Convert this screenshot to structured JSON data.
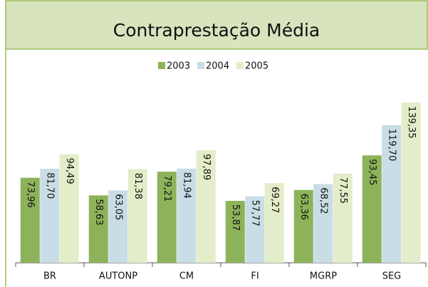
{
  "chart_data": {
    "type": "bar",
    "title": "Contraprestação Média",
    "categories": [
      "BR",
      "AUTONP",
      "CM",
      "FI",
      "MGRP",
      "SEG"
    ],
    "series": [
      {
        "name": "2003",
        "color": "#8db35a",
        "values": [
          73.96,
          58.63,
          79.21,
          53.87,
          63.36,
          93.45
        ],
        "value_labels": [
          "73,96",
          "58,63",
          "79,21",
          "53,87",
          "63,36",
          "93,45"
        ]
      },
      {
        "name": "2004",
        "color": "#c9dde6",
        "values": [
          81.7,
          63.05,
          81.94,
          57.77,
          68.52,
          119.7
        ],
        "value_labels": [
          "81,70",
          "63,05",
          "81,94",
          "57,77",
          "68,52",
          "119,70"
        ]
      },
      {
        "name": "2005",
        "color": "#e4edc9",
        "values": [
          94.49,
          81.38,
          97.89,
          69.27,
          77.55,
          139.35
        ],
        "value_labels": [
          "94,49",
          "81,38",
          "97,89",
          "69,27",
          "77,55",
          "139,35"
        ]
      }
    ],
    "ylim": [
      0,
      140
    ],
    "legend": "top"
  }
}
